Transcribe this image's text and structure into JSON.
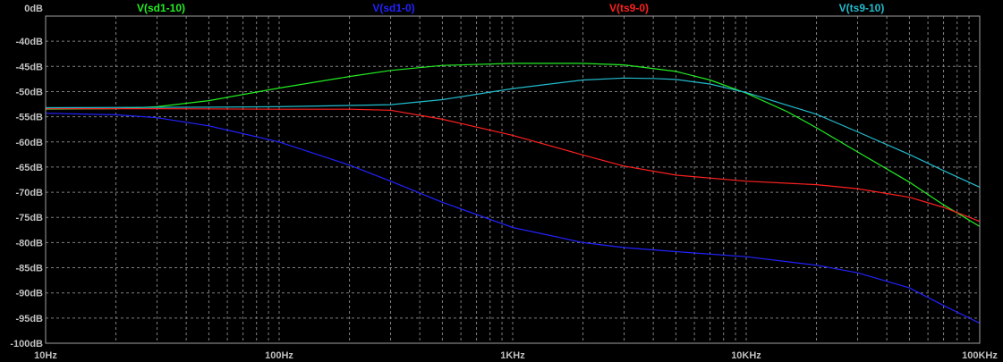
{
  "chart_data": {
    "type": "line",
    "title": "",
    "xlabel": "",
    "ylabel": "",
    "x_scale": "log",
    "xlim": [
      10,
      100000
    ],
    "ylim": [
      -100,
      -35
    ],
    "grid": true,
    "legend_placement": "top",
    "background": "#000000",
    "x_ticks": [
      {
        "value": 10,
        "label": "10Hz"
      },
      {
        "value": 100,
        "label": "100Hz"
      },
      {
        "value": 1000,
        "label": "1KHz"
      },
      {
        "value": 10000,
        "label": "10KHz"
      },
      {
        "value": 100000,
        "label": "100KHz"
      }
    ],
    "y_ticks": [
      {
        "value": -40,
        "label": "-40dB"
      },
      {
        "value": -45,
        "label": "-45dB"
      },
      {
        "value": -50,
        "label": "-50dB"
      },
      {
        "value": -55,
        "label": "-55dB"
      },
      {
        "value": -60,
        "label": "-60dB"
      },
      {
        "value": -65,
        "label": "-65dB"
      },
      {
        "value": -70,
        "label": "-70dB"
      },
      {
        "value": -75,
        "label": "-75dB"
      },
      {
        "value": -80,
        "label": "-80dB"
      },
      {
        "value": -85,
        "label": "-85dB"
      },
      {
        "value": -90,
        "label": "-90dB"
      },
      {
        "value": -95,
        "label": "-95dB"
      },
      {
        "value": -100,
        "label": "-100dB"
      }
    ],
    "top_label": "0dB",
    "series": [
      {
        "name": "V(sd1-10)",
        "color": "#22ee22",
        "points": [
          [
            10,
            -53.5
          ],
          [
            20,
            -53.4
          ],
          [
            30,
            -53.0
          ],
          [
            50,
            -51.8
          ],
          [
            100,
            -49.3
          ],
          [
            200,
            -47.0
          ],
          [
            300,
            -45.8
          ],
          [
            500,
            -44.8
          ],
          [
            1000,
            -44.4
          ],
          [
            2000,
            -44.4
          ],
          [
            3000,
            -44.7
          ],
          [
            5000,
            -46.0
          ],
          [
            7000,
            -47.7
          ],
          [
            10000,
            -50.3
          ],
          [
            15000,
            -54.0
          ],
          [
            20000,
            -57.2
          ],
          [
            30000,
            -62.0
          ],
          [
            50000,
            -68.0
          ],
          [
            70000,
            -72.5
          ],
          [
            100000,
            -76.8
          ]
        ]
      },
      {
        "name": "V(sd1-0)",
        "color": "#2222ff",
        "points": [
          [
            10,
            -54.3
          ],
          [
            20,
            -54.6
          ],
          [
            30,
            -55.2
          ],
          [
            50,
            -56.8
          ],
          [
            100,
            -60.0
          ],
          [
            200,
            -64.6
          ],
          [
            300,
            -67.8
          ],
          [
            500,
            -72.0
          ],
          [
            1000,
            -77.0
          ],
          [
            2000,
            -80.0
          ],
          [
            3000,
            -81.0
          ],
          [
            5000,
            -81.8
          ],
          [
            10000,
            -82.8
          ],
          [
            20000,
            -84.5
          ],
          [
            30000,
            -86.0
          ],
          [
            50000,
            -89.0
          ],
          [
            70000,
            -92.5
          ],
          [
            100000,
            -96.0
          ]
        ]
      },
      {
        "name": "V(ts9-0)",
        "color": "#ff2020",
        "points": [
          [
            10,
            -53.4
          ],
          [
            30,
            -53.4
          ],
          [
            100,
            -53.5
          ],
          [
            200,
            -53.5
          ],
          [
            300,
            -53.7
          ],
          [
            500,
            -55.5
          ],
          [
            1000,
            -58.7
          ],
          [
            2000,
            -62.6
          ],
          [
            3000,
            -64.8
          ],
          [
            5000,
            -66.6
          ],
          [
            10000,
            -67.8
          ],
          [
            20000,
            -68.5
          ],
          [
            30000,
            -69.3
          ],
          [
            50000,
            -71.0
          ],
          [
            70000,
            -73.0
          ],
          [
            100000,
            -75.8
          ]
        ]
      },
      {
        "name": "V(ts9-10)",
        "color": "#22bbcc",
        "points": [
          [
            10,
            -53.2
          ],
          [
            50,
            -53.1
          ],
          [
            100,
            -53.0
          ],
          [
            300,
            -52.6
          ],
          [
            500,
            -51.6
          ],
          [
            1000,
            -49.4
          ],
          [
            2000,
            -47.7
          ],
          [
            3000,
            -47.3
          ],
          [
            4000,
            -47.4
          ],
          [
            5000,
            -47.6
          ],
          [
            7000,
            -48.5
          ],
          [
            10000,
            -50.2
          ],
          [
            20000,
            -54.5
          ],
          [
            30000,
            -58.0
          ],
          [
            50000,
            -62.5
          ],
          [
            70000,
            -65.7
          ],
          [
            100000,
            -69.0
          ]
        ]
      }
    ]
  }
}
